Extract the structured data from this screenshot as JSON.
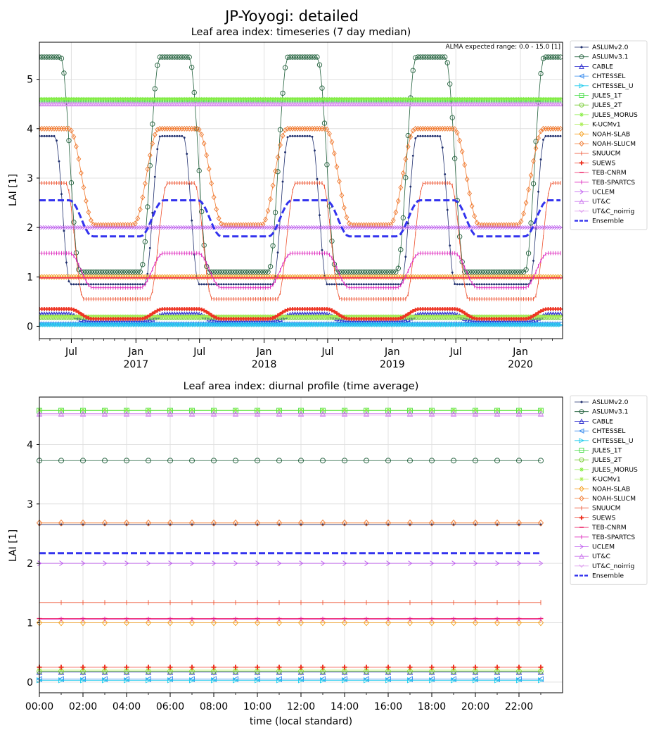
{
  "figure_title": "JP-Yoyogi: detailed",
  "chart_data": [
    {
      "type": "line",
      "title": "Leaf area index: timeseries (7 day median)",
      "xlabel": "",
      "ylabel": "LAI [1]",
      "annotation": "ALMA expected range: 0.0 - 15.0 [1]",
      "x_start": "2016-04-01",
      "x_end": "2020-04-30",
      "ylim": [
        -0.25,
        5.75
      ],
      "yticks": [
        0,
        1,
        2,
        3,
        4,
        5
      ],
      "ytick_labels": [
        "0",
        "1",
        "2",
        "3",
        "4",
        "5"
      ],
      "xticks": [
        {
          "date": "2016-07-01",
          "label": "Jul",
          "sublabel": ""
        },
        {
          "date": "2017-01-01",
          "label": "Jan",
          "sublabel": "2017"
        },
        {
          "date": "2017-07-01",
          "label": "Jul",
          "sublabel": ""
        },
        {
          "date": "2018-01-01",
          "label": "Jan",
          "sublabel": "2018"
        },
        {
          "date": "2018-07-01",
          "label": "Jul",
          "sublabel": ""
        },
        {
          "date": "2019-01-01",
          "label": "Jan",
          "sublabel": "2019"
        },
        {
          "date": "2019-07-01",
          "label": "Jul",
          "sublabel": ""
        },
        {
          "date": "2020-01-01",
          "label": "Jan",
          "sublabel": "2020"
        }
      ],
      "grid": true,
      "legend_position": "outside-right",
      "series": [
        {
          "name": "ASLUMv2.0",
          "color": "#1f2f6e",
          "marker": "dot",
          "kind": "seasonal",
          "min": 0.85,
          "max": 3.85,
          "mid_time": 0.28,
          "peak_width": 0.3
        },
        {
          "name": "ASLUMv3.1",
          "color": "#1f5f3a",
          "marker": "circle",
          "kind": "seasonal",
          "min": 1.1,
          "max": 5.45,
          "mid_time": 0.3,
          "peak_width": 0.38
        },
        {
          "name": "CABLE",
          "color": "#2222cc",
          "marker": "triangle-up",
          "kind": "seasonal",
          "min": 0.1,
          "max": 0.25,
          "mid_time": 0.35,
          "peak_width": 0.4
        },
        {
          "name": "CHTESSEL",
          "color": "#3388ee",
          "marker": "triangle-left",
          "kind": "constant",
          "value": 0.05
        },
        {
          "name": "CHTESSEL_U",
          "color": "#22ccee",
          "marker": "triangle-right",
          "kind": "constant",
          "value": 0.03
        },
        {
          "name": "JULES_1T",
          "color": "#44dd44",
          "marker": "square",
          "kind": "constant",
          "value": 4.58
        },
        {
          "name": "JULES_2T",
          "color": "#77cc33",
          "marker": "circle",
          "kind": "constant",
          "value": 0.18
        },
        {
          "name": "JULES_MORUS",
          "color": "#88ee44",
          "marker": "star",
          "kind": "constant",
          "value": 4.6
        },
        {
          "name": "K-UCMv1",
          "color": "#aaee55",
          "marker": "star",
          "kind": "constant",
          "value": 0.2
        },
        {
          "name": "NOAH-SLAB",
          "color": "#f5a020",
          "marker": "diamond",
          "kind": "constant",
          "value": 1.0
        },
        {
          "name": "NOAH-SLUCM",
          "color": "#f07a30",
          "marker": "diamond",
          "kind": "seasonal",
          "min": 2.05,
          "max": 4.0,
          "mid_time": 0.33,
          "peak_width": 0.5
        },
        {
          "name": "SNUUCM",
          "color": "#ee5533",
          "marker": "tick",
          "kind": "seasonal",
          "min": 0.55,
          "max": 2.9,
          "mid_time": 0.35,
          "peak_width": 0.35
        },
        {
          "name": "SUEWS",
          "color": "#ee3322",
          "marker": "plus",
          "kind": "seasonal",
          "min": 0.15,
          "max": 0.35,
          "mid_time": 0.35,
          "peak_width": 0.45
        },
        {
          "name": "TEB-CNRM",
          "color": "#ee2266",
          "marker": "dash",
          "kind": "constant",
          "value": 0.98
        },
        {
          "name": "TEB-SPARTCS",
          "color": "#dd22bb",
          "marker": "tick",
          "kind": "seasonal",
          "min": 0.78,
          "max": 1.48,
          "mid_time": 0.35,
          "peak_width": 0.45
        },
        {
          "name": "UCLEM",
          "color": "#bb55ee",
          "marker": "chevron",
          "kind": "constant",
          "value": 2.0
        },
        {
          "name": "UT&C",
          "color": "#cc77ee",
          "marker": "triangle-up",
          "kind": "constant",
          "value": 4.5
        },
        {
          "name": "UT&C_noirrig",
          "color": "#dd99ee",
          "marker": "chevron-down",
          "kind": "constant",
          "value": 4.48
        },
        {
          "name": "Ensemble",
          "color": "#3333ee",
          "marker": "dashed-line",
          "kind": "seasonal",
          "min": 1.82,
          "max": 2.55,
          "mid_time": 0.35,
          "peak_width": 0.45
        }
      ]
    },
    {
      "type": "line",
      "title": "Leaf area index: diurnal profile (time average)",
      "xlabel": "time (local standard)",
      "ylabel": "LAI [1]",
      "xlim": [
        0,
        24
      ],
      "ylim": [
        -0.18,
        4.8
      ],
      "xticks": [
        0,
        2,
        4,
        6,
        8,
        10,
        12,
        14,
        16,
        18,
        20,
        22
      ],
      "xtick_labels": [
        "00:00",
        "02:00",
        "04:00",
        "06:00",
        "08:00",
        "10:00",
        "12:00",
        "14:00",
        "16:00",
        "18:00",
        "20:00",
        "22:00"
      ],
      "yticks": [
        0,
        1,
        2,
        3,
        4
      ],
      "ytick_labels": [
        "0",
        "1",
        "2",
        "3",
        "4"
      ],
      "grid": true,
      "legend_position": "outside-right",
      "series": [
        {
          "name": "ASLUMv2.0",
          "color": "#1f2f6e",
          "marker": "dot",
          "values_constant": 2.65
        },
        {
          "name": "ASLUMv3.1",
          "color": "#1f5f3a",
          "marker": "circle",
          "values_constant": 3.73
        },
        {
          "name": "CABLE",
          "color": "#2222cc",
          "marker": "triangle-up",
          "values_constant": 0.17
        },
        {
          "name": "CHTESSEL",
          "color": "#3388ee",
          "marker": "triangle-left",
          "values_constant": 0.05
        },
        {
          "name": "CHTESSEL_U",
          "color": "#22ccee",
          "marker": "triangle-right",
          "values_constant": 0.03
        },
        {
          "name": "JULES_1T",
          "color": "#44dd44",
          "marker": "square",
          "values_constant": 4.57
        },
        {
          "name": "JULES_2T",
          "color": "#77cc33",
          "marker": "circle",
          "values_constant": 0.18
        },
        {
          "name": "JULES_MORUS",
          "color": "#88ee44",
          "marker": "star",
          "values_constant": 4.58
        },
        {
          "name": "K-UCMv1",
          "color": "#aaee55",
          "marker": "star",
          "values_constant": 0.2
        },
        {
          "name": "NOAH-SLAB",
          "color": "#f5a020",
          "marker": "diamond",
          "values_constant": 1.0
        },
        {
          "name": "NOAH-SLUCM",
          "color": "#f07a30",
          "marker": "diamond",
          "values_constant": 2.68
        },
        {
          "name": "SNUUCM",
          "color": "#ee5533",
          "marker": "tick",
          "values_constant": 1.34
        },
        {
          "name": "SUEWS",
          "color": "#ee3322",
          "marker": "plus",
          "values_constant": 0.25
        },
        {
          "name": "TEB-CNRM",
          "color": "#ee2266",
          "marker": "dash",
          "values_constant": 1.07
        },
        {
          "name": "TEB-SPARTCS",
          "color": "#dd22bb",
          "marker": "tick",
          "values_constant": 1.06
        },
        {
          "name": "UCLEM",
          "color": "#bb55ee",
          "marker": "chevron",
          "values_constant": 2.0
        },
        {
          "name": "UT&C",
          "color": "#cc77ee",
          "marker": "triangle-up",
          "values_constant": 4.52
        },
        {
          "name": "UT&C_noirrig",
          "color": "#dd99ee",
          "marker": "chevron-down",
          "values_constant": 4.5
        },
        {
          "name": "Ensemble",
          "color": "#3333ee",
          "marker": "dashed-line",
          "values_constant": 2.17
        }
      ]
    }
  ]
}
